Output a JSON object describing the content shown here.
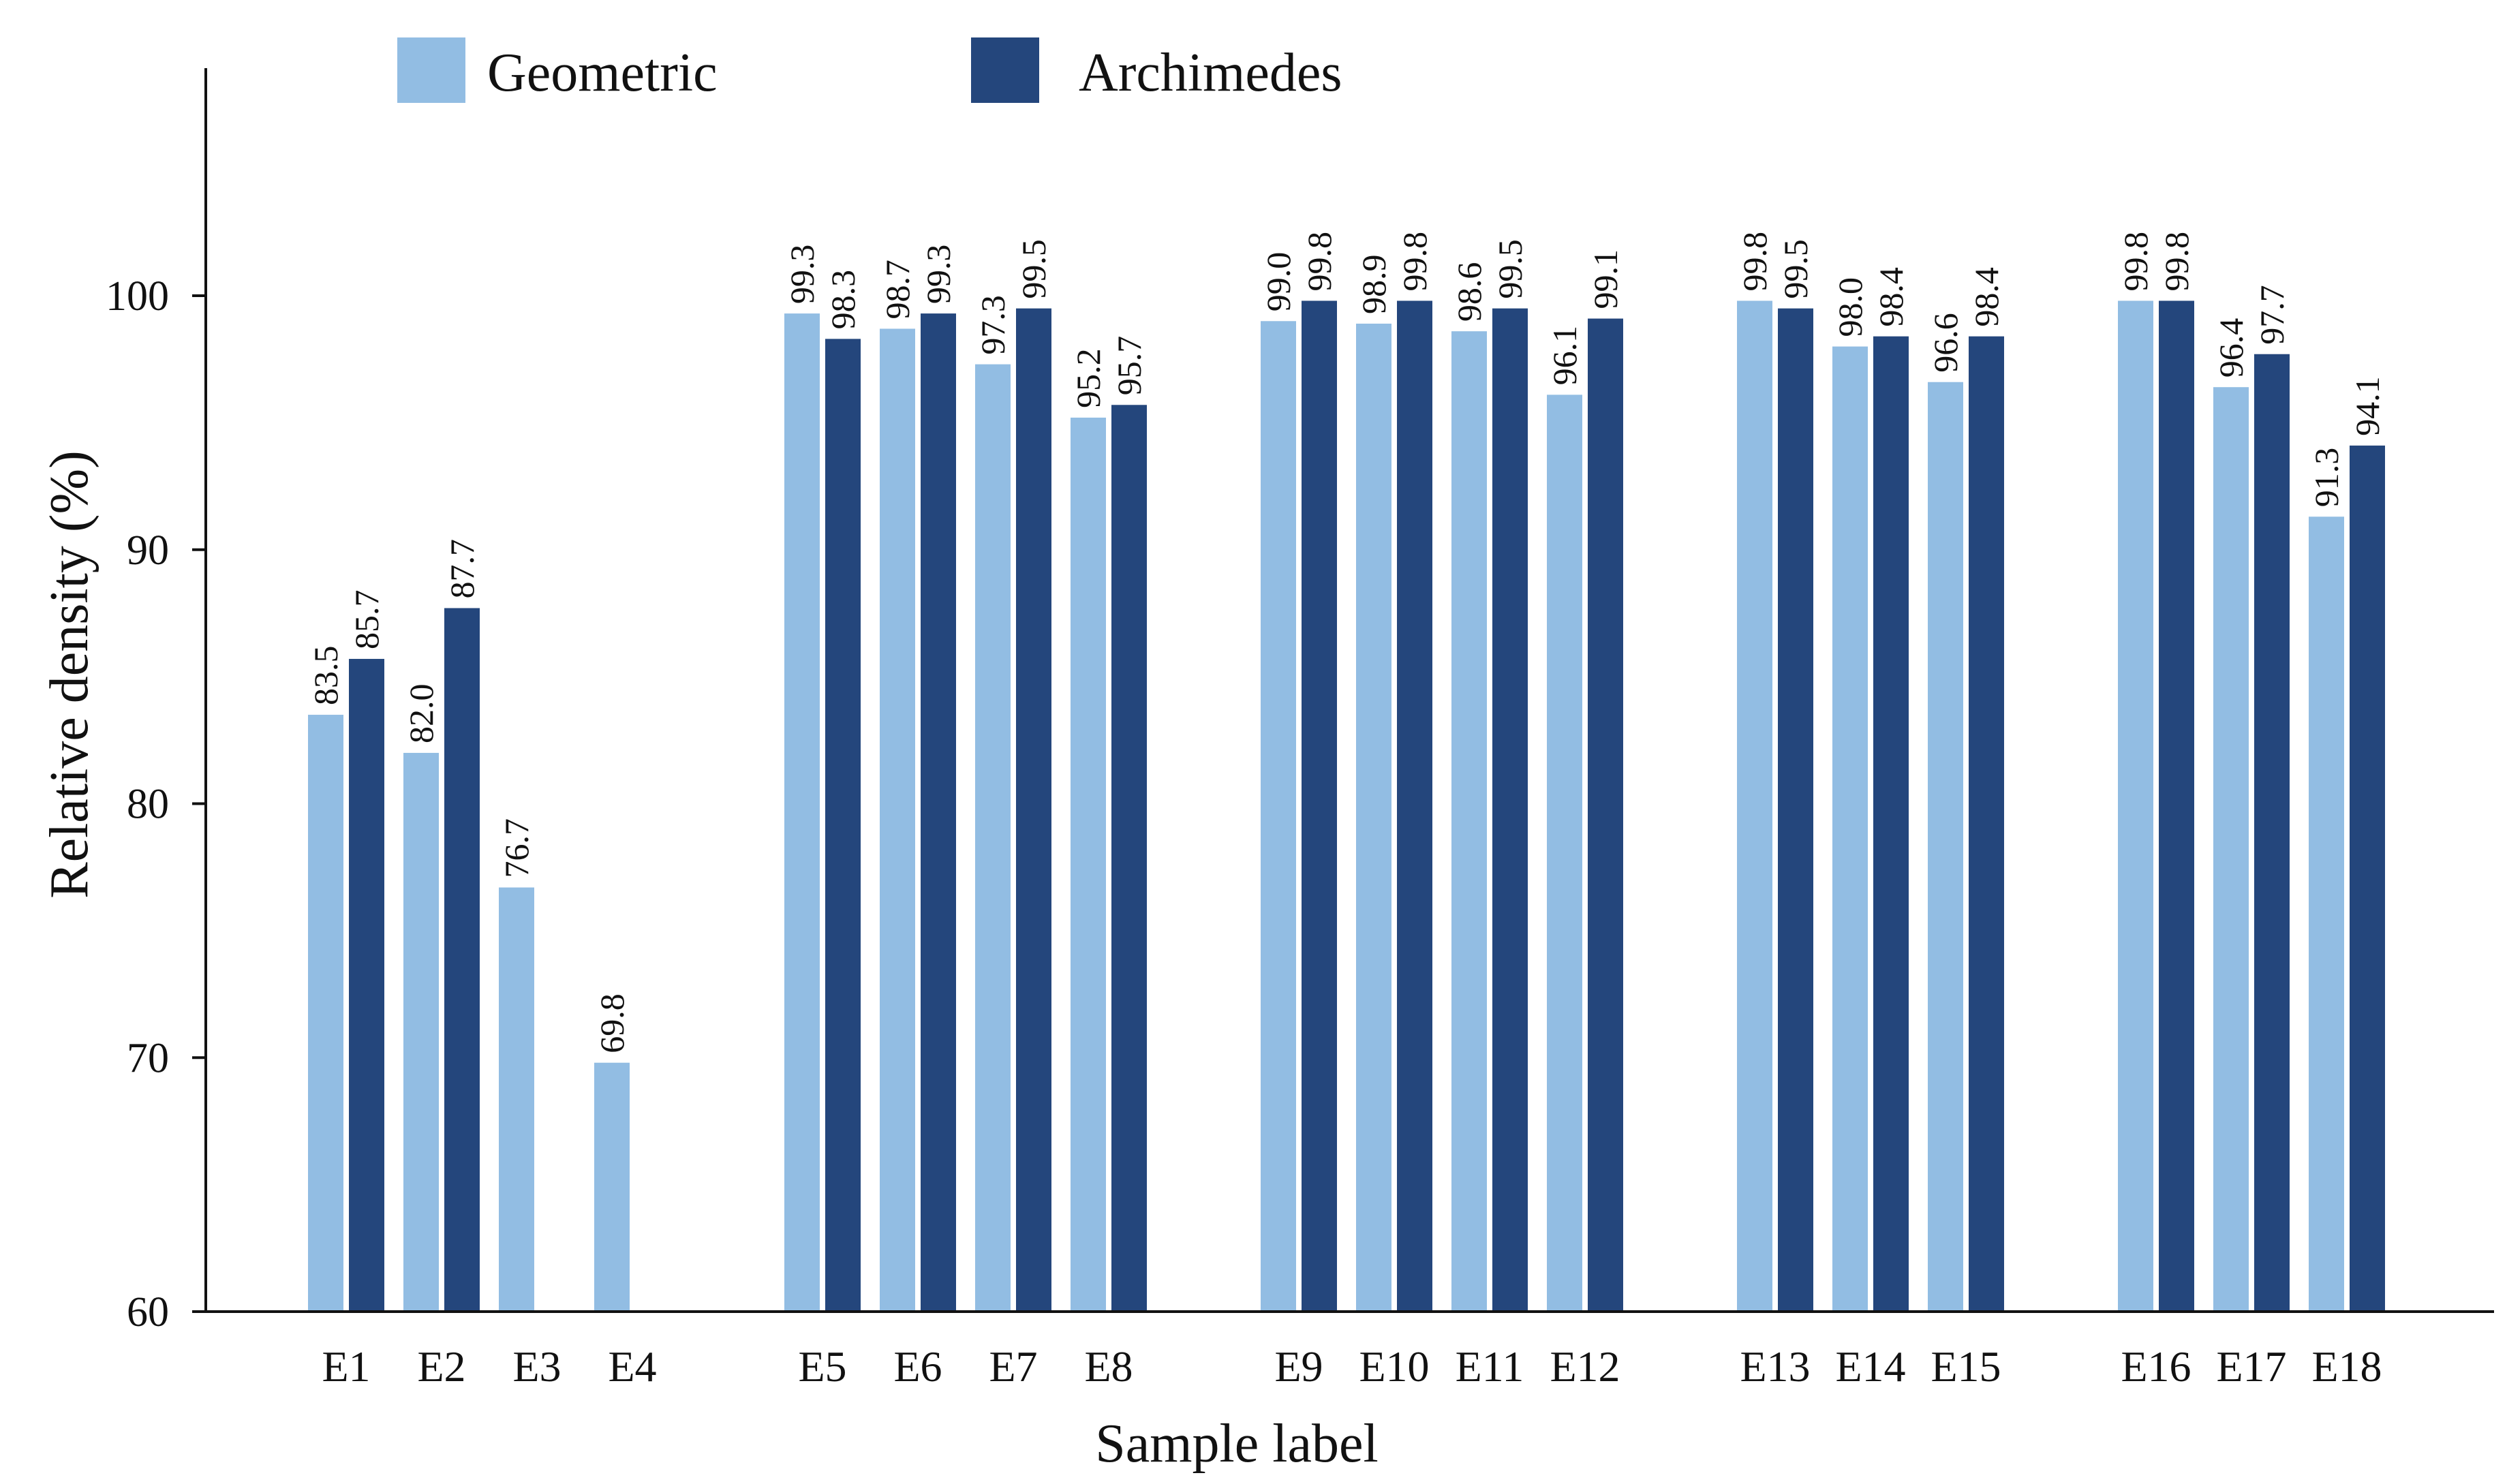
{
  "chart_data": {
    "type": "bar",
    "xlabel": "Sample label",
    "ylabel": "Relative  density (%)",
    "ylim": [
      60,
      110
    ],
    "yticks": [
      60,
      70,
      80,
      90,
      100
    ],
    "grid": false,
    "legend_position": "top-left",
    "categories": [
      "E1",
      "E2",
      "E3",
      "E4",
      "E5",
      "E6",
      "E7",
      "E8",
      "E9",
      "E10",
      "E11",
      "E12",
      "E13",
      "E14",
      "E15",
      "E16",
      "E17",
      "E18"
    ],
    "groups": [
      4,
      4,
      4,
      3,
      3
    ],
    "series": [
      {
        "name": "Geometric",
        "color": "#92bde3",
        "values": [
          83.5,
          82.0,
          76.7,
          69.8,
          99.3,
          98.7,
          97.3,
          95.2,
          99.0,
          98.9,
          98.6,
          96.1,
          99.8,
          98.0,
          96.6,
          99.8,
          96.4,
          91.3
        ],
        "labels": [
          "83.5",
          "82.0",
          "76.7",
          "69.8",
          "99.3",
          "98.7",
          "97.3",
          "95.2",
          "99.0",
          "98.9",
          "98.6",
          "96.1",
          "99.8",
          "98.0",
          "96.6",
          "99.8",
          "96.4",
          "91.3"
        ]
      },
      {
        "name": "Archimedes",
        "color": "#24467c",
        "values": [
          85.7,
          87.7,
          null,
          null,
          98.3,
          99.3,
          99.5,
          95.7,
          99.8,
          99.8,
          99.5,
          99.1,
          99.5,
          98.4,
          98.4,
          99.8,
          97.7,
          94.1
        ],
        "labels": [
          "85.7",
          "87.7",
          null,
          null,
          "98.3",
          "99.3",
          "99.5",
          "95.7",
          "99.8",
          "99.8",
          "99.5",
          "99.1",
          "99.5",
          "98.4",
          "98.4",
          "99.8",
          "97.7",
          "94.1"
        ]
      }
    ]
  }
}
